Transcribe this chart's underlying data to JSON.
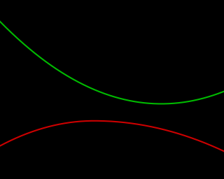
{
  "background_color": "#000000",
  "green_color": "#00bb00",
  "red_color": "#cc0000",
  "figsize": [
    3.2,
    2.56
  ],
  "dpi": 100,
  "linewidth": 1.5
}
